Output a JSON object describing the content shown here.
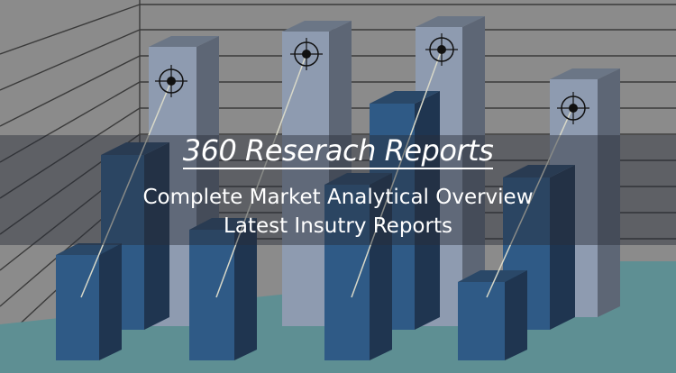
{
  "banner": {
    "title": "360 Reserach Reports",
    "subtitle_line1": "Complete Market Analytical Overview",
    "subtitle_line2": "Latest Insutry Reports"
  },
  "colors": {
    "background": "#8b8b8b",
    "back_bars": "#8e9bb0",
    "front_bars": "#2f5a86",
    "floor": "#5e8f93"
  }
}
